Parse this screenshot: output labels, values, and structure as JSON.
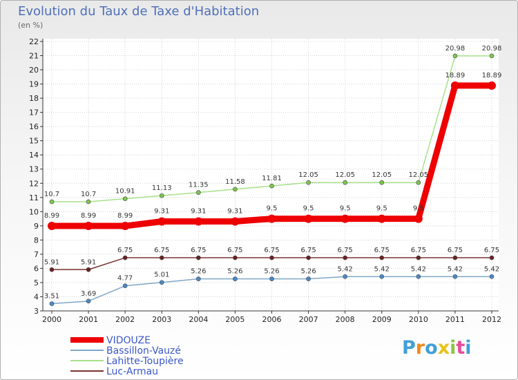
{
  "title": "Evolution du Taux de Taxe d'Habitation",
  "subtitle": "(en %)",
  "brand": {
    "letters": [
      "P",
      "r",
      "o",
      "x",
      "i",
      "t",
      "i"
    ],
    "colors": [
      "#3fa0d8",
      "#f08a1c",
      "#3fa0d8",
      "#e8c21a",
      "#8bc53f",
      "#e84c9a",
      "#3fa0d8"
    ]
  },
  "chart_data": {
    "type": "line",
    "x": [
      "2000",
      "2001",
      "2002",
      "2003",
      "2004",
      "2005",
      "2006",
      "2007",
      "2008",
      "2009",
      "2010",
      "2011",
      "2012"
    ],
    "ylim": [
      3,
      22
    ],
    "yticks": [
      "3",
      "4",
      "5",
      "6",
      "7",
      "8",
      "9",
      "10",
      "11",
      "12",
      "13",
      "14",
      "15",
      "16",
      "17",
      "18",
      "19",
      "20",
      "21",
      "22"
    ],
    "series": [
      {
        "name": "Lahitte-Toupière",
        "color": "#a8e08a",
        "marker": "#7cc84e",
        "width": 1.5,
        "values": [
          10.7,
          10.7,
          10.91,
          11.13,
          11.35,
          11.58,
          11.81,
          12.05,
          12.05,
          12.05,
          12.05,
          20.98,
          20.98
        ],
        "labels": [
          "10.7",
          "10.7",
          "10.91",
          "11.13",
          "11.35",
          "11.58",
          "11.81",
          "12.05",
          "12.05",
          "12.05",
          "12.05",
          "20.98",
          "20.98"
        ]
      },
      {
        "name": "VIDOUZE",
        "color": "#ee0000",
        "marker": "#ee0000",
        "width": 9,
        "values": [
          8.99,
          8.99,
          8.99,
          9.31,
          9.31,
          9.31,
          9.5,
          9.5,
          9.5,
          9.5,
          9.5,
          18.89,
          18.89
        ],
        "labels": [
          "8.99",
          "8.99",
          "8.99",
          "9.31",
          "9.31",
          "9.31",
          "9.5",
          "9.5",
          "9.5",
          "9.5",
          "9.5",
          "18.89",
          "18.89"
        ]
      },
      {
        "name": "Luc-Armau",
        "color": "#7a3030",
        "marker": "#6b2020",
        "width": 1.5,
        "values": [
          5.91,
          5.91,
          6.75,
          6.75,
          6.75,
          6.75,
          6.75,
          6.75,
          6.75,
          6.75,
          6.75,
          6.75,
          6.75
        ],
        "labels": [
          "5.91",
          "5.91",
          "6.75",
          "6.75",
          "6.75",
          "6.75",
          "6.75",
          "6.75",
          "6.75",
          "6.75",
          "6.75",
          "6.75",
          "6.75"
        ]
      },
      {
        "name": "Bassillon-Vauzé",
        "color": "#7fa6c8",
        "marker": "#4a8ac8",
        "width": 1.5,
        "values": [
          3.51,
          3.69,
          4.77,
          5.01,
          5.26,
          5.26,
          5.26,
          5.26,
          5.42,
          5.42,
          5.42,
          5.42,
          5.42
        ],
        "labels": [
          "3.51",
          "3.69",
          "4.77",
          "5.01",
          "5.26",
          "5.26",
          "5.26",
          "5.26",
          "5.42",
          "5.42",
          "5.42",
          "5.42",
          "5.42"
        ]
      }
    ],
    "legend": [
      "VIDOUZE",
      "Bassillon-Vauzé",
      "Lahitte-Toupière",
      "Luc-Armau"
    ],
    "grid": true
  }
}
